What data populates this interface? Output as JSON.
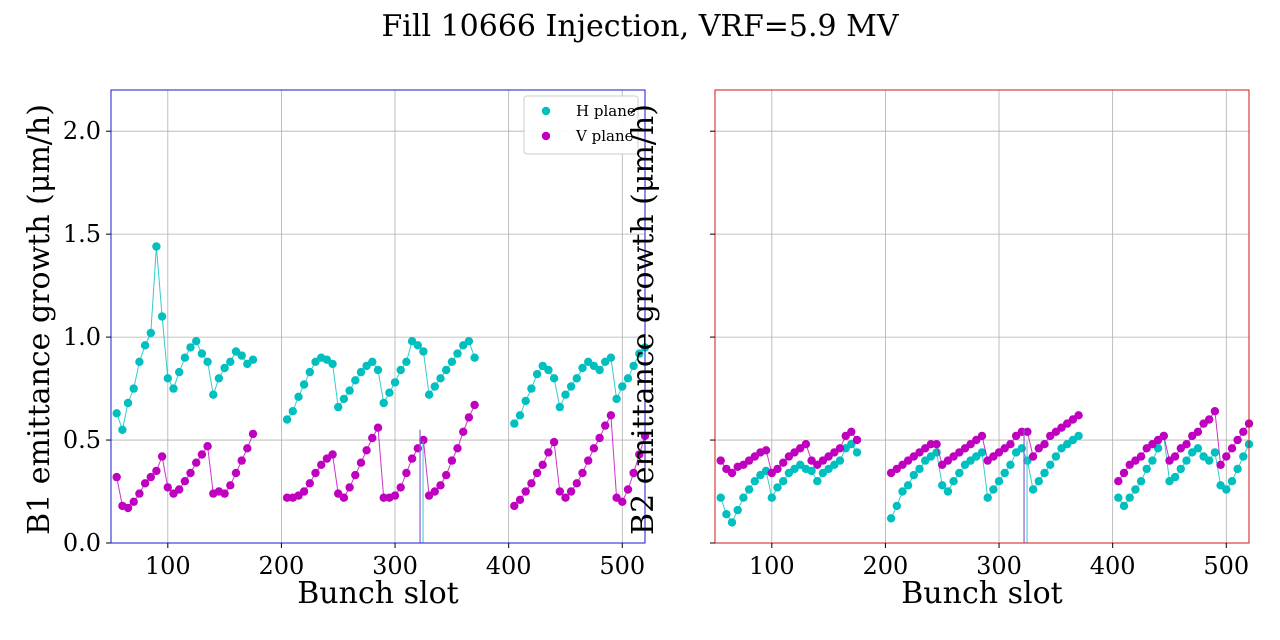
{
  "title": "Fill 10666 Injection, VRF=5.9 MV",
  "chart_data": [
    {
      "type": "scatter",
      "panel": "left",
      "frame_color": "#1a1acc",
      "xlabel": "Bunch slot",
      "ylabel": "B1 emittance growth (μm/h)",
      "xlim": [
        50,
        520
      ],
      "ylim": [
        0,
        2.2
      ],
      "xticks": [
        "100",
        "200",
        "300",
        "400",
        "500"
      ],
      "yticks": [
        "0.0",
        "0.5",
        "1.0",
        "1.5",
        "2.0"
      ],
      "grid": true,
      "legend": {
        "placement": "top-right",
        "entries": [
          "H plane",
          "V plane"
        ]
      },
      "series": [
        {
          "name": "H plane",
          "color": "#00bfbf",
          "segments": [
            {
              "x": [
                55,
                60,
                65,
                70,
                75,
                80,
                85,
                90,
                95,
                100,
                105,
                110,
                115,
                120,
                125,
                130,
                135,
                140,
                145,
                150,
                155,
                160,
                165,
                170,
                175
              ],
              "y": [
                0.63,
                0.55,
                0.68,
                0.75,
                0.88,
                0.96,
                1.02,
                1.44,
                1.1,
                0.8,
                0.75,
                0.83,
                0.9,
                0.95,
                0.98,
                0.92,
                0.88,
                0.72,
                0.8,
                0.85,
                0.88,
                0.93,
                0.91,
                0.87,
                0.89
              ]
            },
            {
              "x": [
                205,
                210,
                215,
                220,
                225,
                230,
                235,
                240,
                245,
                250,
                255,
                260,
                265,
                270,
                275,
                280,
                285,
                290,
                295,
                300,
                305,
                310,
                315,
                320,
                325,
                330,
                335,
                340,
                345,
                350,
                355,
                360,
                365,
                370
              ],
              "y": [
                0.6,
                0.64,
                0.71,
                0.77,
                0.83,
                0.88,
                0.9,
                0.89,
                0.87,
                0.66,
                0.7,
                0.74,
                0.79,
                0.83,
                0.86,
                0.88,
                0.84,
                0.68,
                0.73,
                0.78,
                0.84,
                0.88,
                0.98,
                0.96,
                0.93,
                0.72,
                0.76,
                0.8,
                0.84,
                0.88,
                0.92,
                0.96,
                0.98,
                0.9
              ]
            },
            {
              "x": [
                405,
                410,
                415,
                420,
                425,
                430,
                435,
                440,
                445,
                450,
                455,
                460,
                465,
                470,
                475,
                480,
                485,
                490,
                495,
                500,
                505,
                510,
                515,
                520
              ],
              "y": [
                0.58,
                0.62,
                0.69,
                0.75,
                0.82,
                0.86,
                0.84,
                0.8,
                0.66,
                0.72,
                0.76,
                0.8,
                0.85,
                0.88,
                0.86,
                0.84,
                0.88,
                0.9,
                0.7,
                0.76,
                0.8,
                0.86,
                0.92,
                0.95
              ]
            }
          ]
        },
        {
          "name": "V plane",
          "color": "#bf00bf",
          "segments": [
            {
              "x": [
                55,
                60,
                65,
                70,
                75,
                80,
                85,
                90,
                95,
                100,
                105,
                110,
                115,
                120,
                125,
                130,
                135,
                140,
                145,
                150,
                155,
                160,
                165,
                170,
                175
              ],
              "y": [
                0.32,
                0.18,
                0.17,
                0.2,
                0.24,
                0.29,
                0.32,
                0.35,
                0.42,
                0.27,
                0.24,
                0.26,
                0.3,
                0.34,
                0.39,
                0.43,
                0.47,
                0.24,
                0.25,
                0.24,
                0.28,
                0.34,
                0.4,
                0.46,
                0.53
              ]
            },
            {
              "x": [
                205,
                210,
                215,
                220,
                225,
                230,
                235,
                240,
                245,
                250,
                255,
                260,
                265,
                270,
                275,
                280,
                285,
                290,
                295,
                300,
                305,
                310,
                315,
                320,
                325,
                330,
                335,
                340,
                345,
                350,
                355,
                360,
                365,
                370
              ],
              "y": [
                0.22,
                0.22,
                0.23,
                0.25,
                0.29,
                0.34,
                0.38,
                0.41,
                0.43,
                0.24,
                0.22,
                0.27,
                0.33,
                0.39,
                0.45,
                0.51,
                0.56,
                0.22,
                0.22,
                0.23,
                0.27,
                0.34,
                0.41,
                0.46,
                0.5,
                0.23,
                0.25,
                0.28,
                0.33,
                0.4,
                0.46,
                0.54,
                0.61,
                0.67
              ]
            },
            {
              "x": [
                405,
                410,
                415,
                420,
                425,
                430,
                435,
                440,
                445,
                450,
                455,
                460,
                465,
                470,
                475,
                480,
                485,
                490,
                495,
                500,
                505,
                510,
                515,
                520
              ],
              "y": [
                0.18,
                0.21,
                0.25,
                0.29,
                0.34,
                0.38,
                0.44,
                0.49,
                0.25,
                0.22,
                0.25,
                0.29,
                0.34,
                0.4,
                0.46,
                0.51,
                0.57,
                0.62,
                0.22,
                0.2,
                0.26,
                0.34,
                0.43,
                0.52
              ]
            }
          ]
        }
      ],
      "spike": {
        "x": 322,
        "y_from": 0.0,
        "y_to": 0.55,
        "color": "#8a5cd6"
      }
    },
    {
      "type": "scatter",
      "panel": "right",
      "frame_color": "#cc1a1a",
      "xlabel": "Bunch slot",
      "ylabel": "B2 emittance growth (μm/h)",
      "xlim": [
        50,
        520
      ],
      "ylim": [
        0,
        2.2
      ],
      "xticks": [
        "100",
        "200",
        "300",
        "400",
        "500"
      ],
      "yticks": [],
      "grid": true,
      "series": [
        {
          "name": "H plane",
          "color": "#00bfbf",
          "segments": [
            {
              "x": [
                55,
                60,
                65,
                70,
                75,
                80,
                85,
                90,
                95,
                100,
                105,
                110,
                115,
                120,
                125,
                130,
                135,
                140,
                145,
                150,
                155,
                160,
                165,
                170,
                175
              ],
              "y": [
                0.22,
                0.14,
                0.1,
                0.16,
                0.22,
                0.26,
                0.3,
                0.33,
                0.35,
                0.22,
                0.27,
                0.3,
                0.34,
                0.36,
                0.38,
                0.36,
                0.35,
                0.3,
                0.34,
                0.36,
                0.38,
                0.4,
                0.46,
                0.48,
                0.44
              ]
            },
            {
              "x": [
                205,
                210,
                215,
                220,
                225,
                230,
                235,
                240,
                245,
                250,
                255,
                260,
                265,
                270,
                275,
                280,
                285,
                290,
                295,
                300,
                305,
                310,
                315,
                320,
                325,
                330,
                335,
                340,
                345,
                350,
                355,
                360,
                365,
                370
              ],
              "y": [
                0.12,
                0.18,
                0.25,
                0.28,
                0.33,
                0.36,
                0.4,
                0.42,
                0.44,
                0.28,
                0.25,
                0.3,
                0.34,
                0.38,
                0.4,
                0.42,
                0.44,
                0.22,
                0.26,
                0.3,
                0.34,
                0.38,
                0.44,
                0.46,
                0.4,
                0.26,
                0.3,
                0.34,
                0.38,
                0.42,
                0.46,
                0.48,
                0.5,
                0.52
              ]
            },
            {
              "x": [
                405,
                410,
                415,
                420,
                425,
                430,
                435,
                440,
                445,
                450,
                455,
                460,
                465,
                470,
                475,
                480,
                485,
                490,
                495,
                500,
                505,
                510,
                515,
                520
              ],
              "y": [
                0.22,
                0.18,
                0.22,
                0.26,
                0.3,
                0.36,
                0.4,
                0.46,
                0.52,
                0.3,
                0.32,
                0.36,
                0.4,
                0.44,
                0.46,
                0.42,
                0.4,
                0.44,
                0.28,
                0.26,
                0.3,
                0.36,
                0.42,
                0.48
              ]
            }
          ]
        },
        {
          "name": "V plane",
          "color": "#bf00bf",
          "segments": [
            {
              "x": [
                55,
                60,
                65,
                70,
                75,
                80,
                85,
                90,
                95,
                100,
                105,
                110,
                115,
                120,
                125,
                130,
                135,
                140,
                145,
                150,
                155,
                160,
                165,
                170,
                175
              ],
              "y": [
                0.4,
                0.36,
                0.34,
                0.37,
                0.38,
                0.4,
                0.42,
                0.44,
                0.45,
                0.34,
                0.36,
                0.39,
                0.42,
                0.44,
                0.46,
                0.48,
                0.4,
                0.38,
                0.4,
                0.42,
                0.44,
                0.46,
                0.52,
                0.54,
                0.5
              ]
            },
            {
              "x": [
                205,
                210,
                215,
                220,
                225,
                230,
                235,
                240,
                245,
                250,
                255,
                260,
                265,
                270,
                275,
                280,
                285,
                290,
                295,
                300,
                305,
                310,
                315,
                320,
                325,
                330,
                335,
                340,
                345,
                350,
                355,
                360,
                365,
                370
              ],
              "y": [
                0.34,
                0.36,
                0.38,
                0.4,
                0.42,
                0.44,
                0.46,
                0.48,
                0.48,
                0.38,
                0.4,
                0.42,
                0.44,
                0.46,
                0.48,
                0.5,
                0.52,
                0.4,
                0.42,
                0.44,
                0.46,
                0.48,
                0.52,
                0.54,
                0.54,
                0.42,
                0.46,
                0.48,
                0.52,
                0.54,
                0.56,
                0.58,
                0.6,
                0.62
              ]
            },
            {
              "x": [
                405,
                410,
                415,
                420,
                425,
                430,
                435,
                440,
                445,
                450,
                455,
                460,
                465,
                470,
                475,
                480,
                485,
                490,
                495,
                500,
                505,
                510,
                515,
                520
              ],
              "y": [
                0.3,
                0.34,
                0.38,
                0.4,
                0.42,
                0.46,
                0.48,
                0.5,
                0.52,
                0.4,
                0.42,
                0.46,
                0.48,
                0.52,
                0.54,
                0.58,
                0.6,
                0.64,
                0.38,
                0.42,
                0.46,
                0.5,
                0.54,
                0.58
              ]
            }
          ]
        }
      ],
      "spike": {
        "x": 322,
        "y_from": 0.0,
        "y_to": 0.55,
        "color": "#8a5cd6"
      }
    }
  ]
}
